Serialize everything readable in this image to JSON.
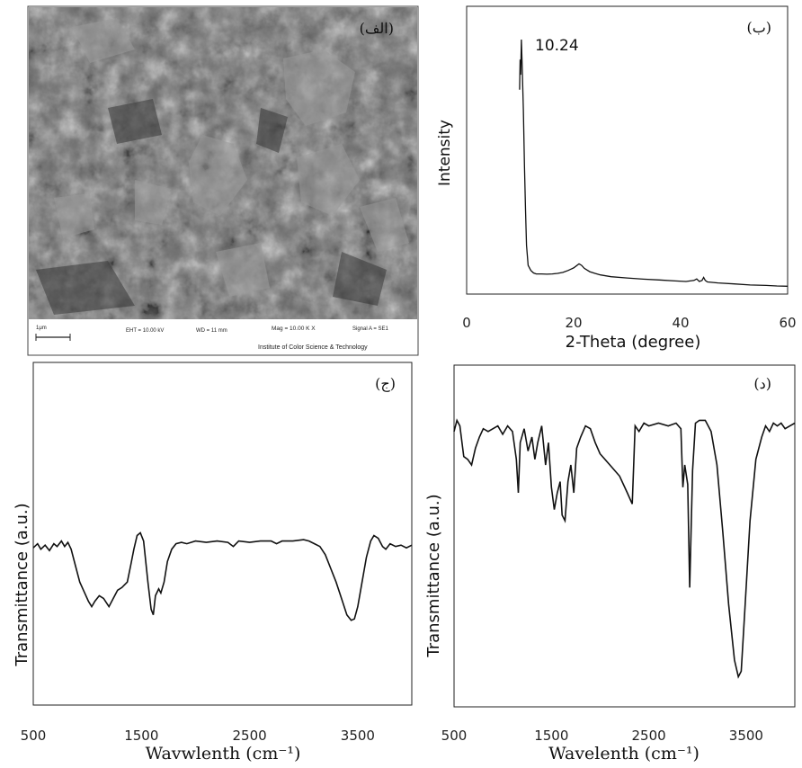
{
  "sem": {
    "panel_label": "(الف)",
    "scale_label": "1μm",
    "footer": {
      "eht": "EHT = 10.00 kV",
      "wd": "WD =  11 mm",
      "mag": "Mag =  10.00 K X",
      "signal": "Signal A = SE1",
      "institute": "Institute of Color Science & Technology"
    }
  },
  "chart_data": [
    {
      "id": "xrd",
      "type": "line",
      "panel_label": "(ب)",
      "title": "",
      "xlabel": "2-Theta (degree)",
      "ylabel": "Intensity",
      "xlim": [
        0,
        60
      ],
      "xticks": [
        "0",
        "20",
        "40",
        "60"
      ],
      "annotations": [
        {
          "text": "10.24",
          "x": 10.24
        }
      ],
      "grid": false,
      "series": [
        {
          "x": [
            9.9,
            10.0,
            10.1,
            10.24,
            10.4,
            10.6,
            10.8,
            11.0,
            11.2,
            11.5,
            12.0,
            12.5,
            13.0,
            14.0,
            15.0,
            16.0,
            17.0,
            18.0,
            19.0,
            20.0,
            20.5,
            21.0,
            21.5,
            22.0,
            23.0,
            24.0,
            25.0,
            27.0,
            30.0,
            33.0,
            36.0,
            39.0,
            41.0,
            42.5,
            43.0,
            43.5,
            44.0,
            44.3,
            44.6,
            45.0,
            47.0,
            50.0,
            53.0,
            56.0,
            58.0,
            60.0
          ],
          "y": [
            0.8,
            0.92,
            0.86,
            1.0,
            0.88,
            0.72,
            0.5,
            0.32,
            0.18,
            0.1,
            0.08,
            0.07,
            0.066,
            0.066,
            0.065,
            0.066,
            0.068,
            0.072,
            0.08,
            0.09,
            0.098,
            0.106,
            0.1,
            0.088,
            0.075,
            0.068,
            0.062,
            0.055,
            0.05,
            0.045,
            0.042,
            0.038,
            0.036,
            0.04,
            0.046,
            0.036,
            0.04,
            0.052,
            0.04,
            0.034,
            0.03,
            0.026,
            0.022,
            0.02,
            0.018,
            0.017
          ]
        }
      ]
    },
    {
      "id": "ftir-1",
      "type": "line",
      "panel_label": "(ج)",
      "title": "",
      "xlabel": "Wavwlenth (cm⁻¹)",
      "ylabel": "Transmittance (a.u.)",
      "xlim": [
        500,
        4000
      ],
      "xticks": [
        "500",
        "1500",
        "2500",
        "3500"
      ],
      "grid": false,
      "series": [
        {
          "x": [
            500,
            540,
            570,
            610,
            650,
            690,
            720,
            760,
            790,
            820,
            850,
            890,
            930,
            970,
            1010,
            1040,
            1070,
            1110,
            1150,
            1200,
            1240,
            1280,
            1320,
            1370,
            1400,
            1430,
            1460,
            1490,
            1520,
            1560,
            1590,
            1610,
            1630,
            1660,
            1680,
            1710,
            1740,
            1780,
            1820,
            1870,
            1920,
            2000,
            2100,
            2200,
            2300,
            2350,
            2400,
            2500,
            2600,
            2700,
            2750,
            2800,
            2900,
            3000,
            3050,
            3100,
            3150,
            3200,
            3250,
            3300,
            3350,
            3400,
            3440,
            3470,
            3500,
            3540,
            3580,
            3620,
            3650,
            3690,
            3730,
            3760,
            3800,
            3850,
            3900,
            3950,
            4000
          ],
          "y": [
            0.65,
            0.68,
            0.64,
            0.67,
            0.63,
            0.68,
            0.66,
            0.7,
            0.66,
            0.69,
            0.64,
            0.52,
            0.4,
            0.33,
            0.26,
            0.22,
            0.26,
            0.3,
            0.28,
            0.22,
            0.28,
            0.34,
            0.36,
            0.4,
            0.52,
            0.64,
            0.74,
            0.76,
            0.7,
            0.4,
            0.2,
            0.16,
            0.3,
            0.35,
            0.32,
            0.4,
            0.55,
            0.64,
            0.68,
            0.69,
            0.68,
            0.7,
            0.69,
            0.7,
            0.69,
            0.66,
            0.7,
            0.69,
            0.7,
            0.7,
            0.68,
            0.7,
            0.7,
            0.71,
            0.7,
            0.68,
            0.66,
            0.6,
            0.5,
            0.4,
            0.28,
            0.16,
            0.12,
            0.13,
            0.22,
            0.4,
            0.58,
            0.7,
            0.74,
            0.72,
            0.66,
            0.64,
            0.68,
            0.66,
            0.67,
            0.65,
            0.67
          ]
        }
      ]
    },
    {
      "id": "ftir-2",
      "type": "line",
      "panel_label": "(د)",
      "title": "",
      "xlabel": "Wavelenth (cm⁻¹)",
      "ylabel": "Transmittance (a.u.)",
      "xlim": [
        500,
        4000
      ],
      "xticks": [
        "500",
        "1500",
        "2500",
        "3500"
      ],
      "grid": false,
      "series": [
        {
          "x": [
            500,
            530,
            560,
            600,
            640,
            680,
            720,
            760,
            800,
            850,
            900,
            950,
            1000,
            1050,
            1100,
            1140,
            1160,
            1180,
            1220,
            1260,
            1300,
            1330,
            1360,
            1400,
            1440,
            1470,
            1500,
            1530,
            1560,
            1590,
            1610,
            1640,
            1670,
            1700,
            1730,
            1760,
            1800,
            1850,
            1900,
            1950,
            2000,
            2100,
            2200,
            2280,
            2330,
            2360,
            2400,
            2450,
            2500,
            2600,
            2700,
            2780,
            2830,
            2850,
            2870,
            2900,
            2920,
            2950,
            2980,
            3020,
            3080,
            3140,
            3200,
            3260,
            3320,
            3380,
            3420,
            3450,
            3490,
            3540,
            3600,
            3660,
            3700,
            3740,
            3780,
            3820,
            3860,
            3900,
            3950,
            4000
          ],
          "y": [
            0.92,
            0.96,
            0.94,
            0.83,
            0.82,
            0.8,
            0.86,
            0.9,
            0.93,
            0.92,
            0.93,
            0.94,
            0.91,
            0.94,
            0.92,
            0.82,
            0.7,
            0.88,
            0.93,
            0.85,
            0.9,
            0.82,
            0.88,
            0.94,
            0.8,
            0.88,
            0.72,
            0.64,
            0.7,
            0.74,
            0.62,
            0.6,
            0.74,
            0.8,
            0.7,
            0.86,
            0.9,
            0.94,
            0.93,
            0.88,
            0.84,
            0.8,
            0.76,
            0.7,
            0.66,
            0.94,
            0.92,
            0.95,
            0.94,
            0.95,
            0.94,
            0.95,
            0.93,
            0.72,
            0.8,
            0.73,
            0.36,
            0.78,
            0.95,
            0.96,
            0.96,
            0.92,
            0.8,
            0.56,
            0.3,
            0.1,
            0.04,
            0.06,
            0.3,
            0.6,
            0.82,
            0.9,
            0.94,
            0.92,
            0.95,
            0.94,
            0.95,
            0.93,
            0.94,
            0.95
          ]
        }
      ]
    }
  ]
}
